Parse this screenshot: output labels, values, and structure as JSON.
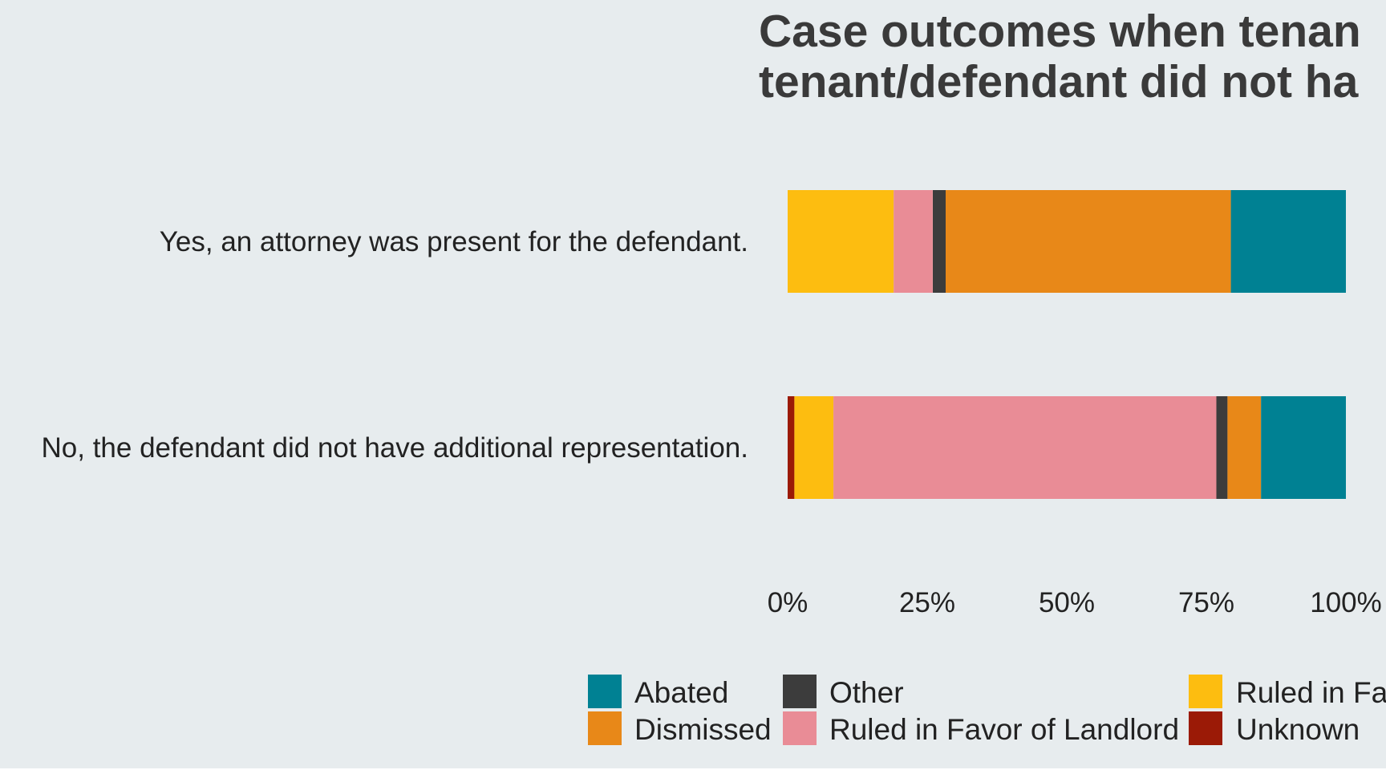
{
  "chart_data": {
    "type": "bar",
    "orientation": "horizontal",
    "stacked": "percent",
    "title": "Case outcomes when tenant/defendant did not have",
    "title_visible_lines": [
      "Case outcomes when tenan",
      "tenant/defendant did not ha"
    ],
    "categories": [
      "Yes, an attorney was present for the defendant.",
      "No, the defendant did not have additional representation."
    ],
    "series": [
      {
        "name": "Unknown",
        "color": "#9b1a06",
        "values": [
          0,
          1.2
        ]
      },
      {
        "name": "Ruled in Favor of Tenant",
        "color": "#fdbd10",
        "values": [
          19,
          7
        ]
      },
      {
        "name": "Ruled in Favor of Landlord",
        "color": "#e98c96",
        "values": [
          7,
          68.6
        ]
      },
      {
        "name": "Other",
        "color": "#3c3c3c",
        "values": [
          2.3,
          2
        ]
      },
      {
        "name": "Dismissed",
        "color": "#e88818",
        "values": [
          51.1,
          6
        ]
      },
      {
        "name": "Abated",
        "color": "#008193",
        "values": [
          20.6,
          15.2
        ]
      }
    ],
    "xlim": [
      0,
      100
    ],
    "xticks": [
      "0%",
      "25%",
      "50%",
      "75%",
      "100%"
    ],
    "xlabel": "",
    "ylabel": "",
    "grid": false,
    "legend_position": "bottom",
    "legend": [
      {
        "label": "Abated",
        "color": "#008193"
      },
      {
        "label": "Dismissed",
        "color": "#e88818"
      },
      {
        "label": "Other",
        "color": "#3c3c3c"
      },
      {
        "label": "Ruled in Favor of Landlord",
        "color": "#e98c96"
      },
      {
        "label": "Ruled in Fa",
        "color": "#fdbd10"
      },
      {
        "label": "Unknown",
        "color": "#9b1a06"
      }
    ]
  }
}
